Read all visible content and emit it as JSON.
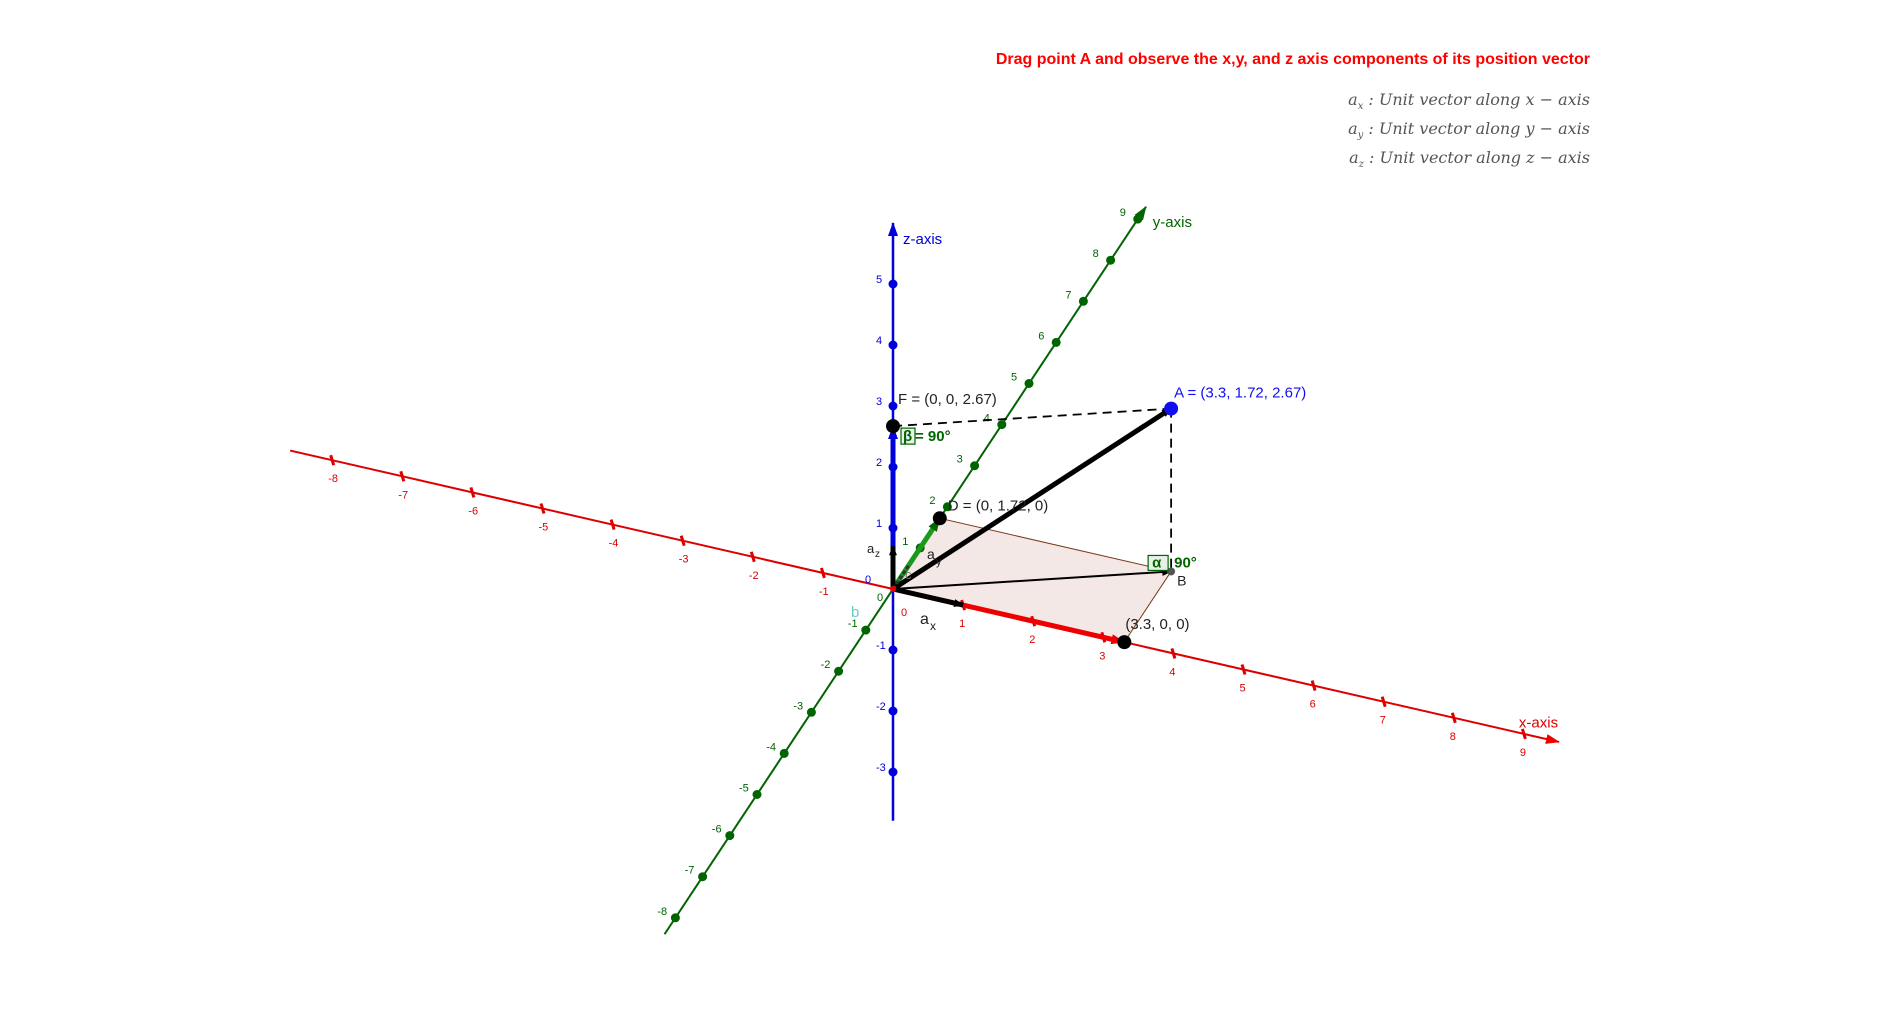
{
  "title": "Drag point A and observe the x,y, and z axis components of its position vector",
  "legend": [
    {
      "sym": "a",
      "sub": "x",
      "text": " : Unit vector along x − axis"
    },
    {
      "sym": "a",
      "sub": "y",
      "text": " : Unit vector along y − axis"
    },
    {
      "sym": "a",
      "sub": "z",
      "text": " : Unit vector along z − axis"
    }
  ],
  "axes": {
    "x": {
      "label": "x-axis",
      "color": "#dd0000",
      "range": [
        -8,
        9
      ]
    },
    "y": {
      "label": "y-axis",
      "color": "#006400",
      "range": [
        -8,
        9
      ]
    },
    "z": {
      "label": "z-axis",
      "color": "#0000dd",
      "range": [
        -3,
        5
      ]
    }
  },
  "points": {
    "A": {
      "label": "A = (3.3, 1.72, 2.67)",
      "coords": [
        3.3,
        1.72,
        2.67
      ],
      "color": "#1010ee"
    },
    "F": {
      "label": "F = (0, 0, 2.67)",
      "coords": [
        0,
        0,
        2.67
      ]
    },
    "D": {
      "label": "D = (0, 1.72, 0)",
      "coords": [
        0,
        1.72,
        0
      ]
    },
    "E": {
      "label": "(3.3, 0, 0)",
      "coords": [
        3.3,
        0,
        0
      ]
    },
    "B": {
      "label": "B",
      "coords": [
        3.3,
        1.72,
        0
      ]
    }
  },
  "angles": {
    "beta": {
      "symbol": "β",
      "text": " = 90°"
    },
    "alpha": {
      "symbol": "α",
      "text": "90°"
    }
  },
  "labels": {
    "ax": "a",
    "ax_sub": "x",
    "ay": "a",
    "ay_sub": "y",
    "az": "a",
    "az_sub": "z",
    "b": "b",
    "c": "c"
  },
  "colors": {
    "title": "#ff0000",
    "plane": "#f2e4e2",
    "b_label": "#66cccc"
  }
}
